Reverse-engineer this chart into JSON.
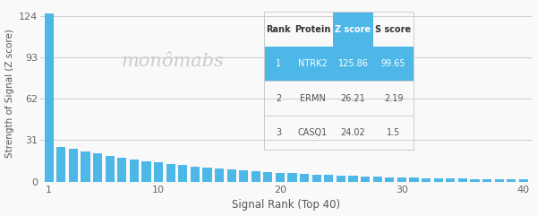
{
  "title": "",
  "xlabel": "Signal Rank (Top 40)",
  "ylabel": "Strength of Signal (Z score)",
  "bar_color": "#4DB8E8",
  "background_color": "#f9f9f9",
  "yticks": [
    0,
    31,
    62,
    93,
    124
  ],
  "xticks": [
    1,
    10,
    20,
    30,
    40
  ],
  "xlim": [
    0.3,
    40.7
  ],
  "ylim": [
    0,
    132
  ],
  "n_bars": 40,
  "bar1_value": 125.86,
  "decay_start": 26.21,
  "decay_end": 1.5,
  "table": {
    "headers": [
      "Rank",
      "Protein",
      "Z score",
      "S score"
    ],
    "rows": [
      [
        "1",
        "NTRK2",
        "125.86",
        "99.65"
      ],
      [
        "2",
        "ERMN",
        "26.21",
        "2.19"
      ],
      [
        "3",
        "CASQ1",
        "24.02",
        "1.5"
      ]
    ],
    "highlight_row": 0,
    "highlight_color": "#4DB8E8",
    "highlight_text_color": "#ffffff",
    "header_text_color": "#333333",
    "row_text_color": "#555555",
    "zscore_col_header_bg": "#4DB8E8",
    "zscore_col_header_text": "#ffffff"
  },
  "watermark": "monômabs",
  "watermark_color": "#cccccc",
  "grid_color": "#cccccc",
  "separator_color": "#cccccc"
}
